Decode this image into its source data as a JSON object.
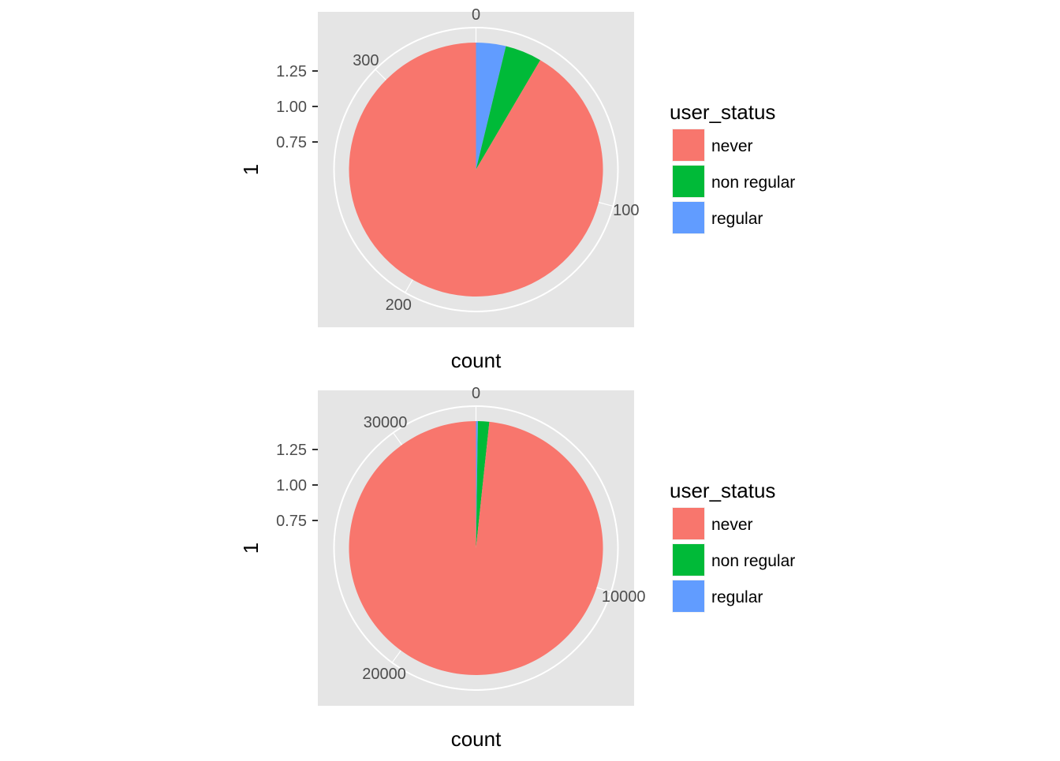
{
  "chart_data": [
    {
      "type": "pie",
      "coord": "polar",
      "xlabel": "count",
      "ylabel": "1",
      "y_ticks": [
        "1.25",
        "1.00",
        "0.75"
      ],
      "theta_ticks": [
        {
          "value": 0,
          "label": "0"
        },
        {
          "value": 100,
          "label": "100"
        },
        {
          "value": 200,
          "label": "200"
        },
        {
          "value": 300,
          "label": "300"
        }
      ],
      "legend": {
        "title": "user_status",
        "position": "right"
      },
      "categories": [
        "never",
        "non regular",
        "regular"
      ],
      "colors": [
        "#F8766D",
        "#00BA38",
        "#619CFF"
      ],
      "values": [
        314,
        16,
        13
      ],
      "total": 343
    },
    {
      "type": "pie",
      "coord": "polar",
      "xlabel": "count",
      "ylabel": "1",
      "y_ticks": [
        "1.25",
        "1.00",
        "0.75"
      ],
      "theta_ticks": [
        {
          "value": 0,
          "label": "0"
        },
        {
          "value": 10000,
          "label": "10000"
        },
        {
          "value": 20000,
          "label": "20000"
        },
        {
          "value": 30000,
          "label": "30000"
        }
      ],
      "legend": {
        "title": "user_status",
        "position": "right"
      },
      "categories": [
        "never",
        "non regular",
        "regular"
      ],
      "colors": [
        "#F8766D",
        "#00BA38",
        "#619CFF"
      ],
      "values": [
        32740,
        480,
        80
      ],
      "total": 33300
    }
  ]
}
